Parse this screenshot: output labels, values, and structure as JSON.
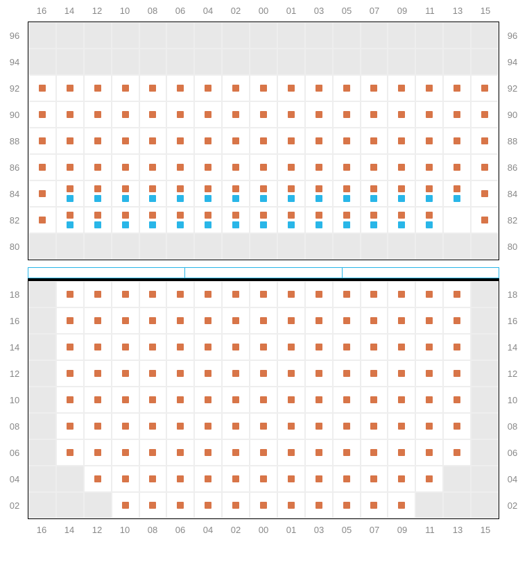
{
  "columns": [
    "16",
    "14",
    "12",
    "10",
    "08",
    "06",
    "04",
    "02",
    "00",
    "01",
    "03",
    "05",
    "07",
    "09",
    "11",
    "13",
    "15"
  ],
  "colors": {
    "orange": "#d87548",
    "blue": "#29b6e8",
    "empty": "#e8e8e8",
    "grid": "#eeeeee",
    "label": "#888888",
    "divider_border": "#29b6e8",
    "black": "#000000"
  },
  "upper": {
    "rows": [
      {
        "label": "96",
        "cells": [
          "e",
          "e",
          "e",
          "e",
          "e",
          "e",
          "e",
          "e",
          "e",
          "e",
          "e",
          "e",
          "e",
          "e",
          "e",
          "e",
          "e"
        ]
      },
      {
        "label": "94",
        "cells": [
          "e",
          "e",
          "e",
          "e",
          "e",
          "e",
          "e",
          "e",
          "e",
          "e",
          "e",
          "e",
          "e",
          "e",
          "e",
          "e",
          "e"
        ]
      },
      {
        "label": "92",
        "cells": [
          "o",
          "o",
          "o",
          "o",
          "o",
          "o",
          "o",
          "o",
          "o",
          "o",
          "o",
          "o",
          "o",
          "o",
          "o",
          "o",
          "o"
        ]
      },
      {
        "label": "90",
        "cells": [
          "o",
          "o",
          "o",
          "o",
          "o",
          "o",
          "o",
          "o",
          "o",
          "o",
          "o",
          "o",
          "o",
          "o",
          "o",
          "o",
          "o"
        ]
      },
      {
        "label": "88",
        "cells": [
          "o",
          "o",
          "o",
          "o",
          "o",
          "o",
          "o",
          "o",
          "o",
          "o",
          "o",
          "o",
          "o",
          "o",
          "o",
          "o",
          "o"
        ]
      },
      {
        "label": "86",
        "cells": [
          "o",
          "o",
          "o",
          "o",
          "o",
          "o",
          "o",
          "o",
          "o",
          "o",
          "o",
          "o",
          "o",
          "o",
          "o",
          "o",
          "o"
        ]
      },
      {
        "label": "84",
        "cells": [
          "o",
          "ob",
          "ob",
          "ob",
          "ob",
          "ob",
          "ob",
          "ob",
          "ob",
          "ob",
          "ob",
          "ob",
          "ob",
          "ob",
          "ob",
          "ob",
          "o"
        ]
      },
      {
        "label": "82",
        "cells": [
          "o",
          "ob",
          "ob",
          "ob",
          "ob",
          "ob",
          "ob",
          "ob",
          "ob",
          "ob",
          "ob",
          "ob",
          "ob",
          "ob",
          "ob",
          "a",
          "o"
        ]
      },
      {
        "label": "80",
        "cells": [
          "e",
          "e",
          "e",
          "e",
          "e",
          "e",
          "e",
          "e",
          "e",
          "e",
          "e",
          "e",
          "e",
          "e",
          "e",
          "e",
          "e"
        ]
      }
    ]
  },
  "lower": {
    "rows": [
      {
        "label": "18",
        "cells": [
          "e",
          "o",
          "o",
          "o",
          "o",
          "o",
          "o",
          "o",
          "o",
          "o",
          "o",
          "o",
          "o",
          "o",
          "o",
          "o",
          "e"
        ]
      },
      {
        "label": "16",
        "cells": [
          "e",
          "o",
          "o",
          "o",
          "o",
          "o",
          "o",
          "o",
          "o",
          "o",
          "o",
          "o",
          "o",
          "o",
          "o",
          "o",
          "e"
        ]
      },
      {
        "label": "14",
        "cells": [
          "e",
          "o",
          "o",
          "o",
          "o",
          "o",
          "o",
          "o",
          "o",
          "o",
          "o",
          "o",
          "o",
          "o",
          "o",
          "o",
          "e"
        ]
      },
      {
        "label": "12",
        "cells": [
          "e",
          "o",
          "o",
          "o",
          "o",
          "o",
          "o",
          "o",
          "o",
          "o",
          "o",
          "o",
          "o",
          "o",
          "o",
          "o",
          "e"
        ]
      },
      {
        "label": "10",
        "cells": [
          "e",
          "o",
          "o",
          "o",
          "o",
          "o",
          "o",
          "o",
          "o",
          "o",
          "o",
          "o",
          "o",
          "o",
          "o",
          "o",
          "e"
        ]
      },
      {
        "label": "08",
        "cells": [
          "e",
          "o",
          "o",
          "o",
          "o",
          "o",
          "o",
          "o",
          "o",
          "o",
          "o",
          "o",
          "o",
          "o",
          "o",
          "o",
          "e"
        ]
      },
      {
        "label": "06",
        "cells": [
          "e",
          "o",
          "o",
          "o",
          "o",
          "o",
          "o",
          "o",
          "o",
          "o",
          "o",
          "o",
          "o",
          "o",
          "o",
          "o",
          "e"
        ]
      },
      {
        "label": "04",
        "cells": [
          "e",
          "e",
          "o",
          "o",
          "o",
          "o",
          "o",
          "o",
          "o",
          "o",
          "o",
          "o",
          "o",
          "o",
          "o",
          "e",
          "e"
        ]
      },
      {
        "label": "02",
        "cells": [
          "e",
          "e",
          "e",
          "o",
          "o",
          "o",
          "o",
          "o",
          "o",
          "o",
          "o",
          "o",
          "o",
          "o",
          "e",
          "e",
          "e"
        ]
      }
    ]
  }
}
